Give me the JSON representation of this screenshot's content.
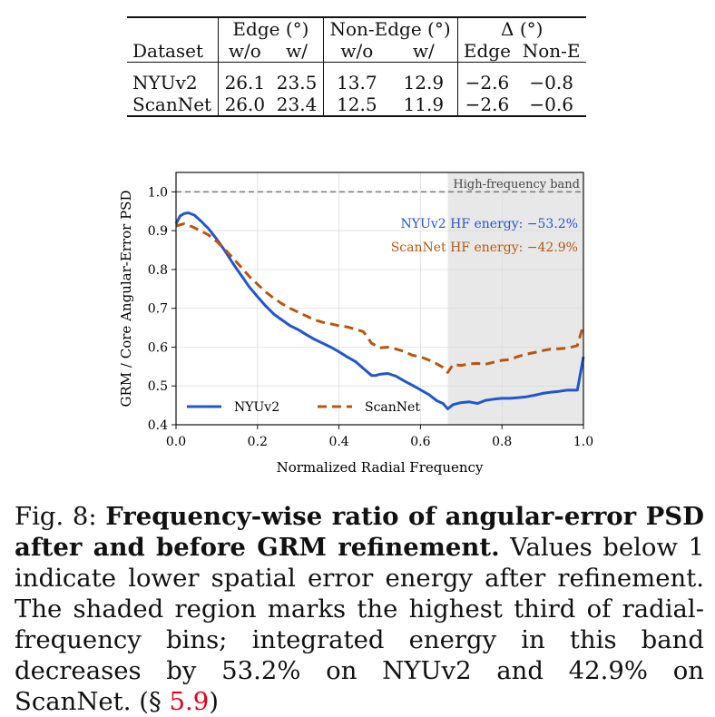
{
  "table": {
    "headers_top": {
      "edge": "Edge (°)",
      "nonedge": "Non-Edge (°)",
      "delta": "Δ (°)"
    },
    "headers_sub": {
      "dataset": "Dataset",
      "edge_wo": "w/o",
      "edge_w": "w/",
      "nonedge_wo": "w/o",
      "nonedge_w": "w/",
      "delta_edge": "Edge",
      "delta_nonedge": "Non-E"
    },
    "rows": [
      {
        "dataset": "NYUv2",
        "edge_wo": "26.1",
        "edge_w": "23.5",
        "nonedge_wo": "13.7",
        "nonedge_w": "12.9",
        "delta_edge": "−2.6",
        "delta_nonedge": "−0.8"
      },
      {
        "dataset": "ScanNet",
        "edge_wo": "26.0",
        "edge_w": "23.4",
        "nonedge_wo": "12.5",
        "nonedge_w": "11.9",
        "delta_edge": "−2.6",
        "delta_nonedge": "−0.6"
      }
    ]
  },
  "chart_data": {
    "type": "line",
    "xlabel": "Normalized Radial Frequency",
    "ylabel": "GRM / Core Angular-Error PSD",
    "xlim": [
      0.0,
      1.0
    ],
    "ylim": [
      0.4,
      1.05
    ],
    "xticks": [
      "0.0",
      "0.2",
      "0.4",
      "0.6",
      "0.8",
      "1.0"
    ],
    "yticks": [
      "0.4",
      "0.5",
      "0.6",
      "0.7",
      "0.8",
      "0.9",
      "1.0"
    ],
    "xtick_values": [
      0.0,
      0.2,
      0.4,
      0.6,
      0.8,
      1.0
    ],
    "ytick_values": [
      0.4,
      0.5,
      0.6,
      0.7,
      0.8,
      0.9,
      1.0
    ],
    "grid": true,
    "reference_line": {
      "y": 1.0,
      "style": "dashed",
      "color": "#777777"
    },
    "shaded_band": {
      "x0": 0.667,
      "x1": 1.0,
      "label": "High-frequency band",
      "color": "#e8e8e8"
    },
    "annotations": [
      {
        "text": "NYUv2 HF energy: −53.2%",
        "color": "#2255cc"
      },
      {
        "text": "ScanNet HF energy: −42.9%",
        "color": "#b8560f"
      }
    ],
    "legend": {
      "position": "bottom-left"
    },
    "series": [
      {
        "name": "NYUv2",
        "color": "#2255cc",
        "style": "solid",
        "x": [
          0.0,
          0.01,
          0.02,
          0.03,
          0.045,
          0.06,
          0.08,
          0.1,
          0.12,
          0.14,
          0.16,
          0.18,
          0.2,
          0.22,
          0.24,
          0.26,
          0.28,
          0.3,
          0.32,
          0.34,
          0.36,
          0.38,
          0.4,
          0.42,
          0.44,
          0.46,
          0.48,
          0.49,
          0.5,
          0.52,
          0.54,
          0.56,
          0.58,
          0.6,
          0.62,
          0.64,
          0.655,
          0.667,
          0.68,
          0.7,
          0.72,
          0.74,
          0.76,
          0.78,
          0.8,
          0.82,
          0.84,
          0.86,
          0.88,
          0.9,
          0.92,
          0.94,
          0.96,
          0.985,
          1.0
        ],
        "y": [
          0.918,
          0.938,
          0.944,
          0.946,
          0.94,
          0.926,
          0.905,
          0.878,
          0.848,
          0.815,
          0.785,
          0.755,
          0.73,
          0.706,
          0.685,
          0.67,
          0.655,
          0.645,
          0.632,
          0.62,
          0.61,
          0.6,
          0.588,
          0.575,
          0.563,
          0.545,
          0.527,
          0.527,
          0.53,
          0.532,
          0.525,
          0.513,
          0.502,
          0.49,
          0.478,
          0.462,
          0.455,
          0.441,
          0.452,
          0.457,
          0.459,
          0.455,
          0.463,
          0.466,
          0.468,
          0.468,
          0.47,
          0.472,
          0.476,
          0.481,
          0.484,
          0.486,
          0.489,
          0.489,
          0.575
        ]
      },
      {
        "name": "ScanNet",
        "color": "#b8560f",
        "style": "dashed",
        "x": [
          0.0,
          0.02,
          0.04,
          0.06,
          0.08,
          0.1,
          0.12,
          0.14,
          0.16,
          0.18,
          0.2,
          0.22,
          0.24,
          0.26,
          0.28,
          0.3,
          0.32,
          0.34,
          0.36,
          0.38,
          0.4,
          0.42,
          0.44,
          0.46,
          0.48,
          0.5,
          0.52,
          0.54,
          0.56,
          0.58,
          0.6,
          0.62,
          0.64,
          0.655,
          0.667,
          0.68,
          0.7,
          0.72,
          0.74,
          0.76,
          0.78,
          0.8,
          0.82,
          0.84,
          0.86,
          0.88,
          0.9,
          0.92,
          0.94,
          0.96,
          0.985,
          1.0
        ],
        "y": [
          0.912,
          0.918,
          0.91,
          0.9,
          0.889,
          0.872,
          0.852,
          0.829,
          0.806,
          0.782,
          0.762,
          0.742,
          0.726,
          0.712,
          0.7,
          0.69,
          0.68,
          0.67,
          0.664,
          0.66,
          0.655,
          0.652,
          0.646,
          0.64,
          0.61,
          0.598,
          0.6,
          0.595,
          0.589,
          0.579,
          0.575,
          0.567,
          0.557,
          0.548,
          0.535,
          0.555,
          0.553,
          0.557,
          0.558,
          0.556,
          0.561,
          0.566,
          0.568,
          0.576,
          0.582,
          0.586,
          0.591,
          0.595,
          0.596,
          0.597,
          0.604,
          0.658
        ]
      }
    ]
  },
  "caption": {
    "prefix": "Fig. 8: ",
    "bold": "Frequency-wise ratio of angular-error PSD after and before GRM refinement.",
    "body": " Values below 1 indicate lower spatial error energy after refinement. The shaded region marks the highest third of radial-frequency bins; integrated energy in this band decreases by 53.2% on NYUv2 and 42.9% on ScanNet. (§ ",
    "ref": "5.9",
    "suffix": ")"
  }
}
